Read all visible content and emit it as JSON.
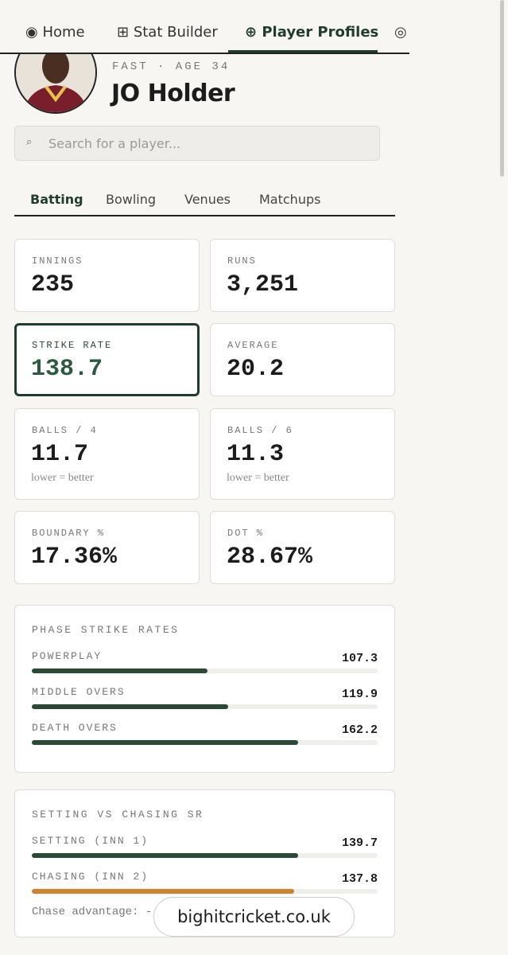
{
  "nav": {
    "tabs": [
      "Home",
      "Stat Builder",
      "Player Profiles"
    ]
  },
  "player": {
    "meta": "FAST · AGE 34",
    "name": "JO Holder"
  },
  "search": {
    "placeholder": "Search for a player..."
  },
  "tabs": [
    "Batting",
    "Bowling",
    "Venues",
    "Matchups"
  ],
  "stats": [
    {
      "label": "INNINGS",
      "value": "235"
    },
    {
      "label": "RUNS",
      "value": "3,251"
    },
    {
      "label": "STRIKE RATE",
      "value": "138.7"
    },
    {
      "label": "AVERAGE",
      "value": "20.2"
    },
    {
      "label": "BALLS / 4",
      "value": "11.7",
      "note": "lower = better"
    },
    {
      "label": "BALLS / 6",
      "value": "11.3",
      "note": "lower = better"
    },
    {
      "label": "BOUNDARY %",
      "value": "17.36%"
    },
    {
      "label": "DOT %",
      "value": "28.67%"
    }
  ],
  "phase": {
    "title": "PHASE STRIKE RATES",
    "rows": [
      {
        "label": "POWERPLAY",
        "value": 107.3
      },
      {
        "label": "MIDDLE OVERS",
        "value": 119.9
      },
      {
        "label": "DEATH OVERS",
        "value": 162.2
      }
    ]
  },
  "setting": {
    "title": "SETTING VS CHASING SR",
    "rows": [
      {
        "label": "SETTING (INN 1)",
        "value": 139.7
      },
      {
        "label": "CHASING (INN 2)",
        "value": 137.8
      }
    ],
    "note": "Chase advantage: -"
  },
  "watermark": "bighitcricket.co.uk"
}
